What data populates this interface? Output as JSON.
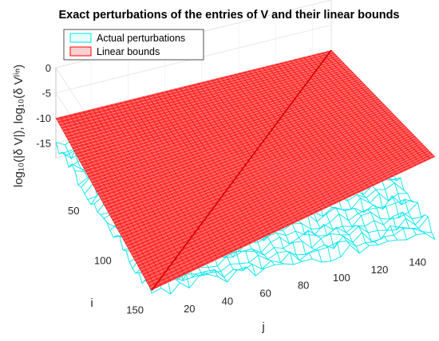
{
  "chart_data": {
    "type": "surface",
    "title": "Exact perturbations of the entries of V and their linear bounds",
    "xlabel": "j",
    "ylabel": "i",
    "zlabel": "log₁₀(|δ V|), log₁₀(δ Vˡⁱⁿ)",
    "x_ticks": [
      20,
      40,
      60,
      80,
      100,
      120,
      140
    ],
    "y_ticks": [
      50,
      100,
      150
    ],
    "z_ticks": [
      0,
      -5,
      -10,
      -15
    ],
    "xlim": [
      1,
      150
    ],
    "ylim": [
      1,
      150
    ],
    "zlim": [
      -18,
      0
    ],
    "grid": true,
    "legend_position": "top-left",
    "series": [
      {
        "name": "Actual perturbations",
        "color": "#00e5ee",
        "style": "mesh",
        "approx_z_range": [
          -18,
          -14
        ]
      },
      {
        "name": "Linear bounds",
        "color": "#ff0000",
        "style": "mesh",
        "corners": {
          "i1_j1": -10,
          "i1_j150": -10,
          "i150_j1": -15,
          "i150_j150": 0
        }
      }
    ]
  }
}
